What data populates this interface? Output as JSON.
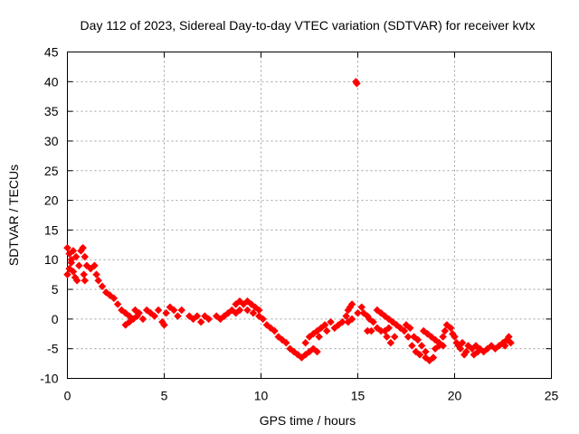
{
  "chart_data": {
    "type": "scatter",
    "title": "Day 112 of 2023, Sidereal Day-to-day VTEC variation (SDTVAR) for receiver kvtx",
    "xlabel": "GPS time / hours",
    "ylabel": "SDTVAR / TECUs",
    "xlim": [
      0,
      25
    ],
    "ylim": [
      -10,
      45
    ],
    "xticks": [
      0,
      5,
      10,
      15,
      20,
      25
    ],
    "yticks": [
      -10,
      -5,
      0,
      5,
      10,
      15,
      20,
      25,
      30,
      35,
      40,
      45
    ],
    "xtick_labels": [
      "0",
      "5",
      "10",
      "15",
      "20",
      "25"
    ],
    "ytick_labels": [
      "-10",
      "-5",
      "0",
      "5",
      "10",
      "15",
      "20",
      "25",
      "30",
      "35",
      "40",
      "45"
    ],
    "grid": true,
    "marker_color": "#ff0000",
    "series": [
      {
        "name": "SDTVAR",
        "points": [
          [
            0.0,
            12.0
          ],
          [
            0.1,
            11.0
          ],
          [
            0.2,
            9.5
          ],
          [
            0.3,
            8.0
          ],
          [
            0.4,
            7.0
          ],
          [
            0.5,
            6.5
          ],
          [
            0.0,
            7.5
          ],
          [
            0.1,
            8.5
          ],
          [
            0.2,
            10.0
          ],
          [
            0.3,
            11.5
          ],
          [
            0.45,
            10.5
          ],
          [
            0.6,
            9.0
          ],
          [
            0.7,
            11.5
          ],
          [
            0.8,
            12.0
          ],
          [
            0.9,
            10.5
          ],
          [
            1.0,
            9.0
          ],
          [
            0.85,
            7.5
          ],
          [
            0.9,
            6.5
          ],
          [
            1.2,
            8.5
          ],
          [
            1.4,
            9.0
          ],
          [
            1.5,
            7.5
          ],
          [
            1.6,
            6.5
          ],
          [
            1.8,
            5.5
          ],
          [
            2.0,
            4.5
          ],
          [
            2.2,
            4.0
          ],
          [
            2.4,
            3.5
          ],
          [
            2.6,
            2.5
          ],
          [
            2.8,
            1.5
          ],
          [
            3.0,
            1.0
          ],
          [
            3.2,
            0.5
          ],
          [
            3.0,
            -1.0
          ],
          [
            3.2,
            -0.5
          ],
          [
            3.4,
            0.0
          ],
          [
            3.6,
            0.5
          ],
          [
            3.5,
            1.5
          ],
          [
            3.7,
            1.0
          ],
          [
            3.9,
            0.0
          ],
          [
            4.1,
            1.5
          ],
          [
            4.3,
            1.0
          ],
          [
            4.5,
            0.5
          ],
          [
            4.7,
            1.5
          ],
          [
            4.9,
            -0.5
          ],
          [
            5.0,
            -1.0
          ],
          [
            5.1,
            1.0
          ],
          [
            5.3,
            2.0
          ],
          [
            5.5,
            1.5
          ],
          [
            5.7,
            0.5
          ],
          [
            5.9,
            1.5
          ],
          [
            6.3,
            0.5
          ],
          [
            6.5,
            0.0
          ],
          [
            6.7,
            0.5
          ],
          [
            6.9,
            -0.5
          ],
          [
            7.1,
            0.5
          ],
          [
            7.3,
            0.0
          ],
          [
            7.7,
            0.5
          ],
          [
            7.9,
            0.0
          ],
          [
            8.1,
            0.5
          ],
          [
            8.3,
            1.0
          ],
          [
            8.5,
            1.5
          ],
          [
            8.7,
            2.5
          ],
          [
            8.9,
            3.0
          ],
          [
            9.1,
            2.5
          ],
          [
            9.3,
            3.0
          ],
          [
            9.5,
            2.5
          ],
          [
            9.7,
            2.0
          ],
          [
            9.9,
            1.5
          ],
          [
            8.7,
            1.0
          ],
          [
            8.9,
            1.5
          ],
          [
            9.3,
            1.5
          ],
          [
            9.6,
            1.0
          ],
          [
            9.9,
            0.5
          ],
          [
            10.1,
            0.0
          ],
          [
            10.3,
            -1.0
          ],
          [
            10.5,
            -1.5
          ],
          [
            10.7,
            -2.0
          ],
          [
            10.9,
            -3.0
          ],
          [
            11.1,
            -3.5
          ],
          [
            11.3,
            -4.0
          ],
          [
            11.5,
            -5.0
          ],
          [
            11.7,
            -5.5
          ],
          [
            11.9,
            -6.0
          ],
          [
            12.1,
            -6.5
          ],
          [
            12.3,
            -6.0
          ],
          [
            12.5,
            -5.5
          ],
          [
            12.3,
            -4.0
          ],
          [
            12.5,
            -3.0
          ],
          [
            12.7,
            -2.5
          ],
          [
            12.9,
            -2.0
          ],
          [
            13.1,
            -1.5
          ],
          [
            13.3,
            -1.0
          ],
          [
            12.7,
            -5.0
          ],
          [
            12.9,
            -5.5
          ],
          [
            13.0,
            -3.0
          ],
          [
            13.4,
            -2.0
          ],
          [
            13.6,
            -0.5
          ],
          [
            13.8,
            -1.5
          ],
          [
            14.0,
            -1.0
          ],
          [
            14.2,
            -0.5
          ],
          [
            14.4,
            0.5
          ],
          [
            14.5,
            1.5
          ],
          [
            14.6,
            2.0
          ],
          [
            14.7,
            2.5
          ],
          [
            14.5,
            -0.5
          ],
          [
            14.7,
            0.0
          ],
          [
            14.9,
            40.0
          ],
          [
            14.95,
            39.7
          ],
          [
            15.0,
            1.0
          ],
          [
            15.2,
            2.0
          ],
          [
            15.3,
            1.0
          ],
          [
            15.5,
            0.5
          ],
          [
            15.6,
            0.0
          ],
          [
            15.8,
            -0.5
          ],
          [
            15.5,
            -2.0
          ],
          [
            15.7,
            -2.0
          ],
          [
            16.0,
            -1.5
          ],
          [
            16.2,
            -2.0
          ],
          [
            16.4,
            -2.0
          ],
          [
            16.6,
            -1.5
          ],
          [
            16.0,
            1.5
          ],
          [
            16.2,
            1.0
          ],
          [
            16.4,
            0.5
          ],
          [
            16.6,
            0.0
          ],
          [
            16.8,
            -0.5
          ],
          [
            17.0,
            -1.0
          ],
          [
            16.5,
            -3.0
          ],
          [
            16.7,
            -4.0
          ],
          [
            16.9,
            -3.0
          ],
          [
            17.2,
            -1.5
          ],
          [
            17.4,
            -2.0
          ],
          [
            17.6,
            -3.0
          ],
          [
            17.5,
            -1.0
          ],
          [
            17.7,
            -1.5
          ],
          [
            17.9,
            -3.0
          ],
          [
            18.1,
            -3.5
          ],
          [
            18.3,
            -4.5
          ],
          [
            18.5,
            -5.5
          ],
          [
            17.8,
            -4.5
          ],
          [
            18.0,
            -5.5
          ],
          [
            18.2,
            -6.0
          ],
          [
            18.5,
            -6.5
          ],
          [
            18.7,
            -7.0
          ],
          [
            18.9,
            -6.5
          ],
          [
            18.4,
            -2.0
          ],
          [
            18.6,
            -2.5
          ],
          [
            18.8,
            -3.0
          ],
          [
            19.0,
            -3.5
          ],
          [
            19.2,
            -4.0
          ],
          [
            19.4,
            -4.5
          ],
          [
            19.0,
            -5.0
          ],
          [
            19.2,
            -4.5
          ],
          [
            19.4,
            -3.0
          ],
          [
            19.5,
            -2.0
          ],
          [
            19.6,
            -1.0
          ],
          [
            19.8,
            -1.5
          ],
          [
            19.9,
            -2.5
          ],
          [
            20.0,
            -3.0
          ],
          [
            20.1,
            -4.0
          ],
          [
            20.2,
            -4.5
          ],
          [
            20.3,
            -5.0
          ],
          [
            20.4,
            -4.0
          ],
          [
            20.5,
            -6.0
          ],
          [
            20.6,
            -5.5
          ],
          [
            20.7,
            -4.5
          ],
          [
            20.9,
            -5.0
          ],
          [
            21.1,
            -4.5
          ],
          [
            21.3,
            -5.0
          ],
          [
            21.5,
            -5.5
          ],
          [
            21.7,
            -5.0
          ],
          [
            21.9,
            -4.5
          ],
          [
            22.1,
            -5.0
          ],
          [
            22.3,
            -4.5
          ],
          [
            22.5,
            -4.0
          ],
          [
            22.6,
            -4.5
          ],
          [
            22.7,
            -3.5
          ],
          [
            22.8,
            -3.0
          ],
          [
            22.9,
            -4.0
          ],
          [
            21.0,
            -6.0
          ],
          [
            21.2,
            -5.5
          ]
        ]
      }
    ]
  }
}
